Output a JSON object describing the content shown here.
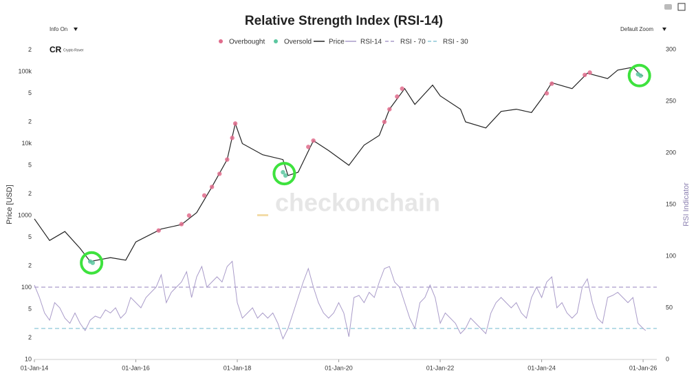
{
  "ui": {
    "info_toggle": "Info On",
    "zoom_menu": "Default Zoom",
    "logo_text": "Crypto Rover",
    "watermark": "checkonchain"
  },
  "chart_data": {
    "type": "line",
    "title": "Relative Strength Index (RSI-14)",
    "ylabel": "Price [USD]",
    "y2label": "RSI Indicator",
    "log_scale_y": true,
    "grid": false,
    "xlim": [
      2014,
      2026.27
    ],
    "xticks": [
      {
        "value": 2014,
        "label": "01-Jan-14"
      },
      {
        "value": 2016,
        "label": "01-Jan-16"
      },
      {
        "value": 2018,
        "label": "01-Jan-18"
      },
      {
        "value": 2020,
        "label": "01-Jan-20"
      },
      {
        "value": 2022,
        "label": "01-Jan-22"
      },
      {
        "value": 2024,
        "label": "01-Jan-24"
      },
      {
        "value": 2026,
        "label": "01-Jan-26"
      }
    ],
    "ylim": [
      10,
      300000
    ],
    "yticks": [
      10,
      {
        "value": 20,
        "label": "2"
      },
      {
        "value": 50,
        "label": "5"
      },
      100,
      {
        "value": 200,
        "label": "2"
      },
      {
        "value": 500,
        "label": "5"
      },
      1000,
      {
        "value": 2000,
        "label": "2"
      },
      {
        "value": 5000,
        "label": "5"
      },
      {
        "value": 10000,
        "label": "10k"
      },
      {
        "value": 20000,
        "label": "2"
      },
      {
        "value": 50000,
        "label": "5"
      },
      {
        "value": 100000,
        "label": "100k"
      },
      {
        "value": 200000,
        "label": "2"
      }
    ],
    "y2lim": [
      0,
      300
    ],
    "y2ticks": [
      0,
      50,
      100,
      150,
      200,
      250,
      300
    ],
    "reference_lines": [
      {
        "name": "RSI - 70",
        "value": 70,
        "color": "#a99bc9"
      },
      {
        "name": "RSI - 30",
        "value": 30,
        "color": "#8cc6d6"
      }
    ],
    "series": [
      {
        "name": "Overbought",
        "mode": "markers",
        "color": "#e06c8c",
        "x": [
          2016.45,
          2016.9,
          2017.05,
          2017.35,
          2017.5,
          2017.65,
          2017.8,
          2017.9,
          2017.96,
          2019.4,
          2019.5,
          2020.9,
          2021.0,
          2021.15,
          2021.25,
          2024.1,
          2024.2,
          2024.85,
          2024.95
        ],
        "values": [
          620,
          760,
          1000,
          1900,
          2500,
          3800,
          6000,
          12000,
          19000,
          9000,
          11000,
          20000,
          30000,
          45000,
          58000,
          50000,
          68000,
          90000,
          97000
        ]
      },
      {
        "name": "Oversold",
        "mode": "markers",
        "color": "#5cc7a0",
        "x": [
          2015.1,
          2015.15,
          2018.9,
          2018.95,
          2025.9,
          2025.95
        ],
        "values": [
          230,
          220,
          4000,
          3600,
          92000,
          88000
        ]
      },
      {
        "name": "Price",
        "mode": "line",
        "color": "#222222",
        "x": [
          2014.0,
          2014.3,
          2014.6,
          2014.9,
          2015.1,
          2015.5,
          2015.8,
          2016.0,
          2016.5,
          2016.9,
          2017.2,
          2017.5,
          2017.8,
          2017.96,
          2018.1,
          2018.5,
          2018.9,
          2019.0,
          2019.2,
          2019.5,
          2019.8,
          2020.2,
          2020.5,
          2020.8,
          2021.0,
          2021.3,
          2021.5,
          2021.85,
          2022.0,
          2022.4,
          2022.5,
          2022.9,
          2023.2,
          2023.5,
          2023.8,
          2024.0,
          2024.2,
          2024.6,
          2024.9,
          2025.3,
          2025.5,
          2025.8,
          2025.95,
          2026.0
        ],
        "values": [
          900,
          450,
          600,
          350,
          230,
          260,
          240,
          430,
          650,
          750,
          1100,
          2500,
          6000,
          19000,
          10000,
          7000,
          6000,
          3600,
          4000,
          11000,
          8000,
          5000,
          9500,
          13000,
          30000,
          58000,
          35000,
          65000,
          46000,
          30000,
          20000,
          16500,
          28000,
          30000,
          27000,
          42000,
          70000,
          58000,
          95000,
          80000,
          105000,
          115000,
          90000,
          87000
        ]
      },
      {
        "name": "RSI-14",
        "mode": "line",
        "axis": "y2",
        "color": "#a99bc9",
        "x": [
          2014.0,
          2014.1,
          2014.2,
          2014.3,
          2014.4,
          2014.5,
          2014.6,
          2014.7,
          2014.8,
          2014.9,
          2015.0,
          2015.1,
          2015.2,
          2015.3,
          2015.4,
          2015.5,
          2015.6,
          2015.7,
          2015.8,
          2015.9,
          2016.0,
          2016.1,
          2016.2,
          2016.3,
          2016.4,
          2016.5,
          2016.6,
          2016.7,
          2016.8,
          2016.9,
          2017.0,
          2017.1,
          2017.2,
          2017.3,
          2017.4,
          2017.5,
          2017.6,
          2017.7,
          2017.8,
          2017.9,
          2018.0,
          2018.1,
          2018.2,
          2018.3,
          2018.4,
          2018.5,
          2018.6,
          2018.7,
          2018.8,
          2018.9,
          2019.0,
          2019.1,
          2019.2,
          2019.3,
          2019.4,
          2019.5,
          2019.6,
          2019.7,
          2019.8,
          2019.9,
          2020.0,
          2020.1,
          2020.2,
          2020.3,
          2020.4,
          2020.5,
          2020.6,
          2020.7,
          2020.8,
          2020.9,
          2021.0,
          2021.1,
          2021.2,
          2021.3,
          2021.4,
          2021.5,
          2021.6,
          2021.7,
          2021.8,
          2021.9,
          2022.0,
          2022.1,
          2022.2,
          2022.3,
          2022.4,
          2022.5,
          2022.6,
          2022.7,
          2022.8,
          2022.9,
          2023.0,
          2023.1,
          2023.2,
          2023.3,
          2023.4,
          2023.5,
          2023.6,
          2023.7,
          2023.8,
          2023.9,
          2024.0,
          2024.1,
          2024.2,
          2024.3,
          2024.4,
          2024.5,
          2024.6,
          2024.7,
          2024.8,
          2024.9,
          2025.0,
          2025.1,
          2025.2,
          2025.3,
          2025.4,
          2025.5,
          2025.6,
          2025.7,
          2025.8,
          2025.9,
          2026.0,
          2026.05
        ],
        "values": [
          72,
          60,
          45,
          38,
          55,
          50,
          40,
          35,
          45,
          35,
          28,
          38,
          42,
          40,
          48,
          45,
          50,
          40,
          45,
          60,
          55,
          50,
          60,
          65,
          70,
          82,
          55,
          65,
          70,
          75,
          85,
          60,
          80,
          90,
          70,
          75,
          80,
          75,
          90,
          95,
          55,
          40,
          45,
          50,
          40,
          45,
          40,
          45,
          35,
          20,
          30,
          45,
          60,
          75,
          88,
          70,
          55,
          45,
          40,
          45,
          55,
          45,
          22,
          60,
          62,
          55,
          65,
          60,
          75,
          88,
          90,
          75,
          70,
          55,
          40,
          30,
          55,
          60,
          72,
          60,
          35,
          45,
          40,
          35,
          25,
          30,
          40,
          35,
          30,
          25,
          45,
          55,
          60,
          55,
          50,
          55,
          45,
          40,
          60,
          70,
          60,
          75,
          80,
          50,
          55,
          45,
          40,
          45,
          70,
          78,
          55,
          40,
          35,
          60,
          62,
          65,
          60,
          55,
          60,
          35,
          30,
          28
        ]
      }
    ]
  }
}
